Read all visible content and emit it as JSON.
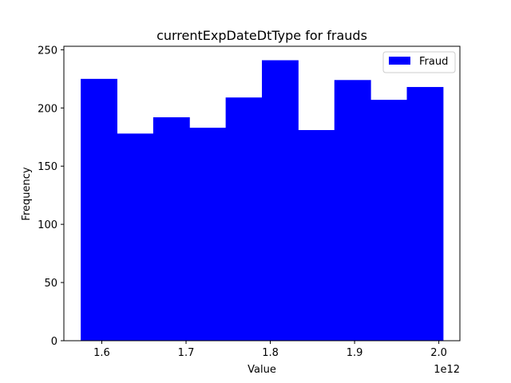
{
  "chart_data": {
    "type": "bar",
    "title": "currentExpDateDtType for frauds",
    "xlabel": "Value",
    "ylabel": "Frequency",
    "x_offset_label": "1e12",
    "bin_edges": [
      1.575,
      1.618,
      1.661,
      1.704,
      1.747,
      1.79,
      1.833,
      1.876,
      1.919,
      1.962,
      2.005
    ],
    "values": [
      225,
      178,
      192,
      183,
      209,
      241,
      181,
      224,
      207,
      218
    ],
    "series": [
      {
        "name": "Fraud",
        "color": "#0000ff"
      }
    ],
    "xlim": [
      1.555,
      2.025
    ],
    "ylim": [
      0,
      253
    ],
    "xticks": [
      1.6,
      1.7,
      1.8,
      1.9,
      2.0
    ],
    "xtick_labels": [
      "1.6",
      "1.7",
      "1.8",
      "1.9",
      "2.0"
    ],
    "yticks": [
      0,
      50,
      100,
      150,
      200,
      250
    ],
    "ytick_labels": [
      "0",
      "50",
      "100",
      "150",
      "200",
      "250"
    ],
    "grid": false,
    "legend_position": "top-right"
  }
}
